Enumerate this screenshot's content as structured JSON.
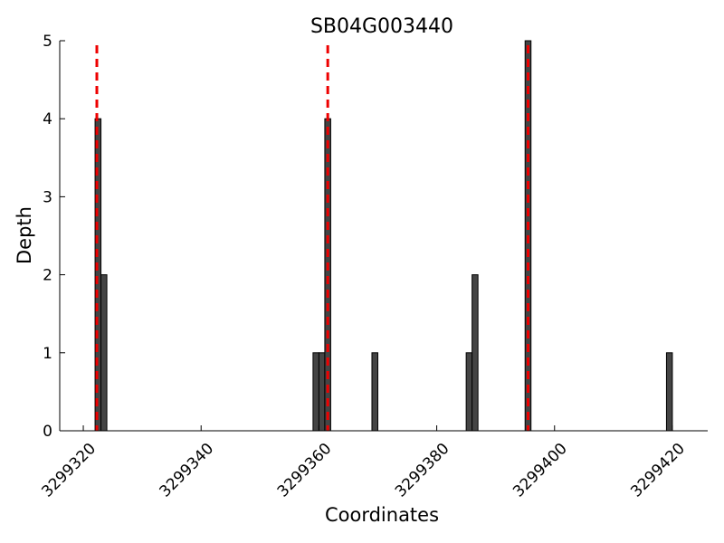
{
  "chart_data": {
    "type": "bar",
    "title": "SB04G003440",
    "xlabel": "Coordinates",
    "ylabel": "Depth",
    "xlim": [
      3299316,
      3299426
    ],
    "ylim": [
      0,
      5
    ],
    "xticks": [
      3299320,
      3299340,
      3299360,
      3299380,
      3299400,
      3299420
    ],
    "yticks": [
      0,
      1,
      2,
      3,
      4,
      5
    ],
    "bar_width": 1,
    "bars": [
      {
        "x": 3299322,
        "y": 4
      },
      {
        "x": 3299323,
        "y": 2
      },
      {
        "x": 3299359,
        "y": 1
      },
      {
        "x": 3299360,
        "y": 1
      },
      {
        "x": 3299361,
        "y": 4
      },
      {
        "x": 3299369,
        "y": 1
      },
      {
        "x": 3299385,
        "y": 1
      },
      {
        "x": 3299386,
        "y": 2
      },
      {
        "x": 3299395,
        "y": 5
      },
      {
        "x": 3299419,
        "y": 1
      }
    ],
    "markers": [
      3299322.3,
      3299361.5,
      3299395.5
    ],
    "bar_color": "#444444",
    "marker_color": "#ee0000",
    "grid": false,
    "legend": "none"
  }
}
